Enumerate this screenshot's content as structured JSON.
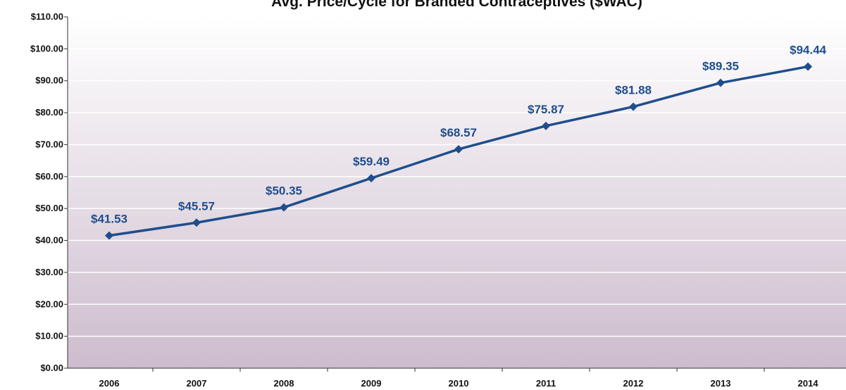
{
  "chart_data": {
    "type": "line",
    "title": "Avg. Price/Cycle for Branded Contraceptives ($WAC)",
    "xlabel": "",
    "ylabel": "",
    "categories": [
      "2006",
      "2007",
      "2008",
      "2009",
      "2010",
      "2011",
      "2012",
      "2013",
      "2014"
    ],
    "series": [
      {
        "values": [
          41.53,
          45.57,
          50.35,
          59.49,
          68.57,
          75.87,
          81.88,
          89.35,
          94.44
        ],
        "labels": [
          "$41.53",
          "$45.57",
          "$50.35",
          "$59.49",
          "$68.57",
          "$75.87",
          "$81.88",
          "$89.35",
          "$94.44"
        ]
      }
    ],
    "ylim": [
      0,
      110
    ],
    "y_ticks": [
      0,
      10,
      20,
      30,
      40,
      50,
      60,
      70,
      80,
      90,
      100,
      110
    ],
    "y_tick_labels": [
      "$0.00",
      "$10.00",
      "$20.00",
      "$30.00",
      "$40.00",
      "$50.00",
      "$60.00",
      "$70.00",
      "$80.00",
      "$90.00",
      "$100.00",
      "$110.00"
    ],
    "grid": true,
    "legend": "none",
    "colors": {
      "line": "#1f4e8c",
      "data_label": "#1f4e8c",
      "plot_top": "#ffffff",
      "plot_bottom": "#cdbccd",
      "grid": "#ffffff",
      "axis": "#333333"
    }
  }
}
